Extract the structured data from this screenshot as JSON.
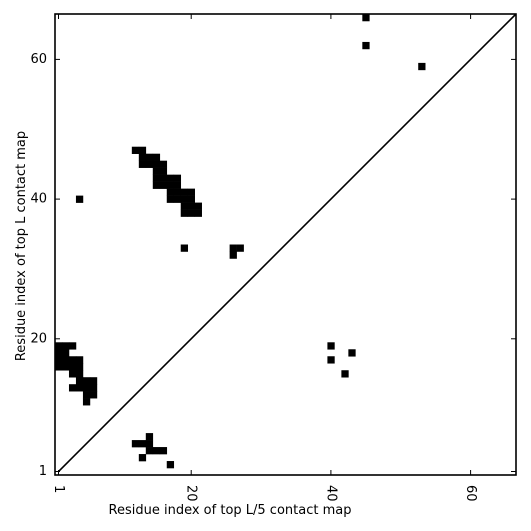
{
  "chart_data": {
    "type": "heatmap",
    "title": "",
    "xlabel": "Residue index of top L/5 contact map",
    "ylabel": "Residue index of top L contact map",
    "xlim": [
      0.5,
      66.5
    ],
    "ylim": [
      0.5,
      66.5
    ],
    "x_ticks": [
      {
        "value": 1,
        "label": "1"
      },
      {
        "value": 20,
        "label": "20"
      },
      {
        "value": 40,
        "label": "40"
      },
      {
        "value": 60,
        "label": "60"
      }
    ],
    "y_ticks": [
      {
        "value": 1,
        "label": "1"
      },
      {
        "value": 20,
        "label": "20"
      },
      {
        "value": 40,
        "label": "40"
      },
      {
        "value": 60,
        "label": "60"
      }
    ],
    "x_tick_label_rotation": -90,
    "diagonal_line": true,
    "grid": false,
    "cell_color": "#000000",
    "background_color": "#ffffff",
    "cells": [
      [
        45,
        66
      ],
      [
        45,
        62
      ],
      [
        53,
        59
      ],
      [
        12,
        47
      ],
      [
        13,
        47
      ],
      [
        13,
        46
      ],
      [
        14,
        46
      ],
      [
        15,
        46
      ],
      [
        13,
        45
      ],
      [
        14,
        45
      ],
      [
        15,
        45
      ],
      [
        16,
        45
      ],
      [
        15,
        44
      ],
      [
        16,
        44
      ],
      [
        15,
        43
      ],
      [
        16,
        43
      ],
      [
        17,
        43
      ],
      [
        18,
        43
      ],
      [
        15,
        42
      ],
      [
        16,
        42
      ],
      [
        17,
        42
      ],
      [
        18,
        42
      ],
      [
        17,
        41
      ],
      [
        18,
        41
      ],
      [
        19,
        41
      ],
      [
        20,
        41
      ],
      [
        17,
        40
      ],
      [
        18,
        40
      ],
      [
        19,
        40
      ],
      [
        20,
        40
      ],
      [
        4,
        40
      ],
      [
        19,
        39
      ],
      [
        20,
        39
      ],
      [
        21,
        39
      ],
      [
        19,
        38
      ],
      [
        20,
        38
      ],
      [
        21,
        38
      ],
      [
        19,
        33
      ],
      [
        26,
        33
      ],
      [
        27,
        33
      ],
      [
        26,
        32
      ],
      [
        1,
        19
      ],
      [
        2,
        19
      ],
      [
        3,
        19
      ],
      [
        1,
        18
      ],
      [
        2,
        18
      ],
      [
        1,
        17
      ],
      [
        2,
        17
      ],
      [
        3,
        17
      ],
      [
        4,
        17
      ],
      [
        1,
        16
      ],
      [
        2,
        16
      ],
      [
        3,
        16
      ],
      [
        4,
        16
      ],
      [
        3,
        15
      ],
      [
        4,
        15
      ],
      [
        4,
        14
      ],
      [
        5,
        14
      ],
      [
        6,
        14
      ],
      [
        3,
        13
      ],
      [
        4,
        13
      ],
      [
        5,
        13
      ],
      [
        6,
        13
      ],
      [
        5,
        12
      ],
      [
        6,
        12
      ],
      [
        5,
        11
      ],
      [
        40,
        19
      ],
      [
        40,
        17
      ],
      [
        43,
        18
      ],
      [
        42,
        15
      ],
      [
        12,
        5
      ],
      [
        13,
        5
      ],
      [
        14,
        5
      ],
      [
        14,
        6
      ],
      [
        14,
        4
      ],
      [
        15,
        4
      ],
      [
        16,
        4
      ],
      [
        13,
        3
      ],
      [
        17,
        2
      ]
    ]
  }
}
